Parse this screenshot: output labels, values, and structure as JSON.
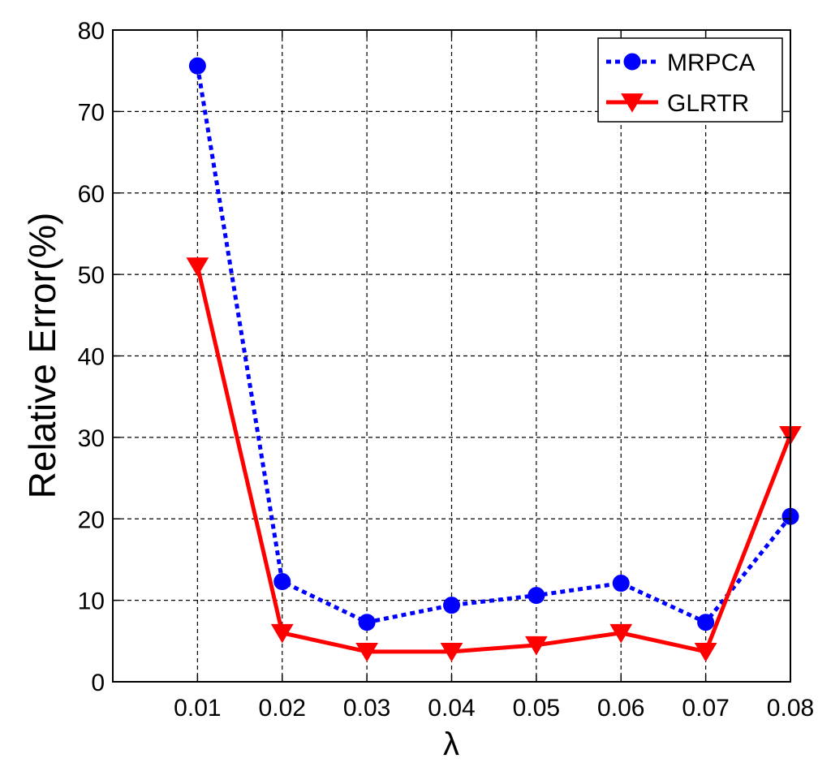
{
  "chart_data": {
    "type": "line",
    "title": "",
    "xlabel": "λ",
    "ylabel": "Relative Error(%)",
    "x": [
      0.01,
      0.02,
      0.03,
      0.04,
      0.05,
      0.06,
      0.07,
      0.08
    ],
    "x_tick_labels": [
      "0.01",
      "0.02",
      "0.03",
      "0.04",
      "0.05",
      "0.06",
      "0.07",
      "0.08"
    ],
    "xlim": [
      0.0,
      0.08
    ],
    "ylim": [
      0,
      80
    ],
    "y_ticks": [
      0,
      10,
      20,
      30,
      40,
      50,
      60,
      70,
      80
    ],
    "grid": true,
    "legend_position": "top-right",
    "series": [
      {
        "name": "MRPCA",
        "values": [
          75.6,
          12.3,
          7.3,
          9.4,
          10.6,
          12.1,
          7.3,
          20.3
        ],
        "color": "#0000ff",
        "line_style": "dotted",
        "marker": "circle"
      },
      {
        "name": "GLRTR",
        "values": [
          51.0,
          6.0,
          3.7,
          3.7,
          4.5,
          6.0,
          3.7,
          30.3
        ],
        "color": "#ff0000",
        "line_style": "solid",
        "marker": "triangle-down"
      }
    ]
  }
}
